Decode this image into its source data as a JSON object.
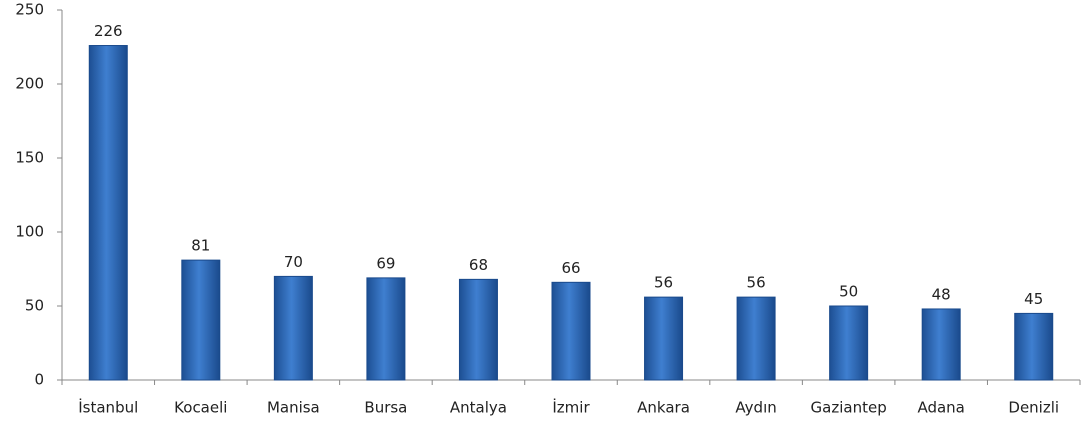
{
  "chart_data": {
    "type": "bar",
    "categories": [
      "İstanbul",
      "Kocaeli",
      "Manisa",
      "Bursa",
      "Antalya",
      "İzmir",
      "Ankara",
      "Aydın",
      "Gaziantep",
      "Adana",
      "Denizli"
    ],
    "values": [
      226,
      81,
      70,
      69,
      68,
      66,
      56,
      56,
      50,
      48,
      45
    ],
    "color": "#3f7fd0",
    "ylim": [
      0,
      250
    ],
    "yticks": [
      0,
      50,
      100,
      150,
      200,
      250
    ],
    "grid": false
  }
}
